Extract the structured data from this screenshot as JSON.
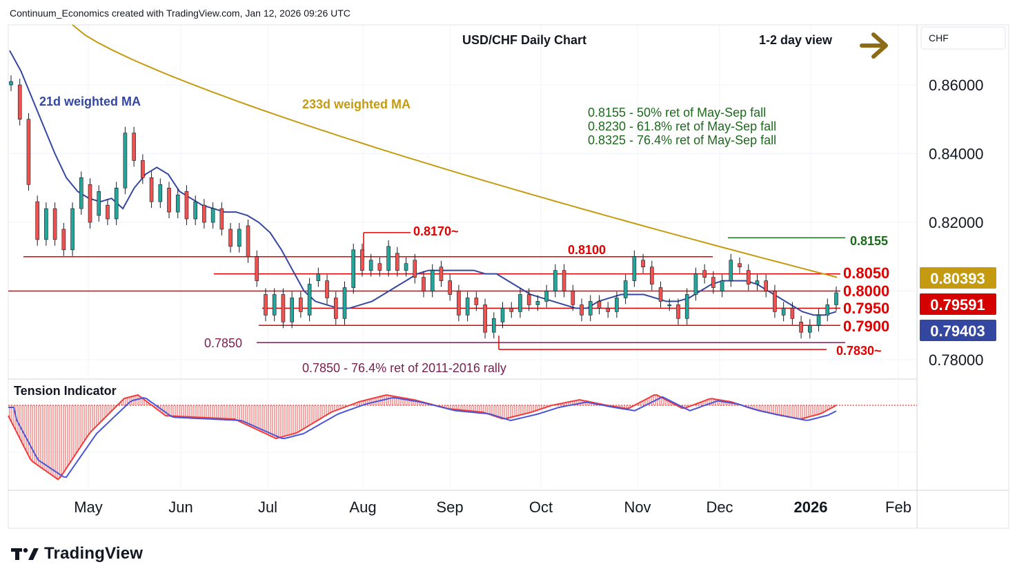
{
  "header": {
    "credit": "Continuum_Economics created with TradingView.com, Jan 12, 2026 09:26 UTC",
    "title": "USD/CHF Daily Chart",
    "view": "1-2 day view",
    "currency": "CHF"
  },
  "watermark": "TradingView",
  "colors": {
    "up": "#26a69a",
    "down": "#ef5350",
    "level": "#e00000",
    "ma21": "#3447a0",
    "ma233": "#c49b10",
    "green_text": "#1b6a1b",
    "maroon_text": "#7a1d4f",
    "arrow": "#8b6b16"
  },
  "annotations": {
    "ma21_label": "21d weighted MA",
    "ma233_label": "233d weighted MA",
    "retracements": [
      "0.8155 - 50% ret of May-Sep fall",
      "0.8230 - 61.8% ret of May-Sep fall",
      "0.8325 - 76.4% ret of May-Sep fall"
    ],
    "level_8170": "0.8170~",
    "level_8100": "0.8100",
    "level_8155": "0.8155",
    "level_8050": "0.8050",
    "level_8000": "0.8000",
    "level_7950": "0.7950",
    "level_7900": "0.7900",
    "level_7850": "0.7850",
    "level_7830": "0.7830~",
    "rally_note": "0.7850 - 76.4% ret of 2011-2016 rally",
    "indicator_title": "Tension Indicator"
  },
  "price_badges": [
    {
      "value": "0.80393",
      "color": "#c49b10",
      "text_color": "#ffffff"
    },
    {
      "value": "0.79591",
      "color": "#d50000",
      "text_color": "#ffffff"
    },
    {
      "value": "0.79403",
      "color": "#3447a0",
      "text_color": "#ffffff"
    }
  ],
  "chart_data": {
    "type": "candlestick",
    "title": "USD/CHF Daily Chart",
    "y_axis": {
      "ticks": [
        "0.86000",
        "0.84000",
        "0.82000",
        "0.78000"
      ],
      "range": [
        0.775,
        0.878
      ]
    },
    "x_axis": {
      "ticks": [
        "May",
        "Jun",
        "Jul",
        "Aug",
        "Sep",
        "Oct",
        "Nov",
        "Dec",
        "2026",
        "Feb"
      ]
    },
    "horizontal_levels": [
      0.817,
      0.8155,
      0.81,
      0.805,
      0.8,
      0.795,
      0.79,
      0.785,
      0.783
    ],
    "close_path": [
      [
        0.86,
        0.861
      ],
      [
        0.86,
        0.85
      ],
      [
        0.85,
        0.831
      ],
      [
        0.826,
        0.815
      ],
      [
        0.815,
        0.824
      ],
      [
        0.824,
        0.815
      ],
      [
        0.818,
        0.812
      ],
      [
        0.812,
        0.824
      ],
      [
        0.824,
        0.833
      ],
      [
        0.831,
        0.82
      ],
      [
        0.822,
        0.829
      ],
      [
        0.825,
        0.821
      ],
      [
        0.821,
        0.83
      ],
      [
        0.83,
        0.846
      ],
      [
        0.846,
        0.838
      ],
      [
        0.838,
        0.833
      ],
      [
        0.833,
        0.826
      ],
      [
        0.826,
        0.831
      ],
      [
        0.83,
        0.823
      ],
      [
        0.823,
        0.828
      ],
      [
        0.829,
        0.821
      ],
      [
        0.821,
        0.826
      ],
      [
        0.825,
        0.82
      ],
      [
        0.82,
        0.824
      ],
      [
        0.824,
        0.818
      ],
      [
        0.818,
        0.813
      ],
      [
        0.813,
        0.818
      ],
      [
        0.819,
        0.81
      ],
      [
        0.81,
        0.803
      ],
      [
        0.799,
        0.793
      ],
      [
        0.793,
        0.799
      ],
      [
        0.799,
        0.791
      ],
      [
        0.791,
        0.798
      ],
      [
        0.798,
        0.794
      ],
      [
        0.793,
        0.802
      ],
      [
        0.803,
        0.805
      ],
      [
        0.803,
        0.798
      ],
      [
        0.798,
        0.792
      ],
      [
        0.792,
        0.801
      ],
      [
        0.801,
        0.812
      ],
      [
        0.812,
        0.806
      ],
      [
        0.806,
        0.809
      ],
      [
        0.808,
        0.806
      ],
      [
        0.806,
        0.813
      ],
      [
        0.811,
        0.806
      ],
      [
        0.806,
        0.808
      ],
      [
        0.809,
        0.804
      ],
      [
        0.804,
        0.8
      ],
      [
        0.8,
        0.806
      ],
      [
        0.807,
        0.803
      ],
      [
        0.803,
        0.799
      ],
      [
        0.8,
        0.793
      ],
      [
        0.793,
        0.798
      ],
      [
        0.798,
        0.796
      ],
      [
        0.796,
        0.788
      ],
      [
        0.788,
        0.792
      ],
      [
        0.791,
        0.795
      ],
      [
        0.795,
        0.794
      ],
      [
        0.794,
        0.799
      ],
      [
        0.799,
        0.796
      ],
      [
        0.796,
        0.797
      ],
      [
        0.797,
        0.8
      ],
      [
        0.8,
        0.806
      ],
      [
        0.806,
        0.8
      ],
      [
        0.8,
        0.796
      ],
      [
        0.796,
        0.793
      ],
      [
        0.793,
        0.797
      ],
      [
        0.797,
        0.795
      ],
      [
        0.795,
        0.794
      ],
      [
        0.794,
        0.798
      ],
      [
        0.798,
        0.803
      ],
      [
        0.803,
        0.81
      ],
      [
        0.809,
        0.807
      ],
      [
        0.807,
        0.802
      ],
      [
        0.801,
        0.797
      ],
      [
        0.796,
        0.796
      ],
      [
        0.796,
        0.792
      ],
      [
        0.792,
        0.799
      ],
      [
        0.799,
        0.805
      ],
      [
        0.806,
        0.804
      ],
      [
        0.804,
        0.801
      ],
      [
        0.8,
        0.803
      ],
      [
        0.803,
        0.809
      ],
      [
        0.808,
        0.807
      ],
      [
        0.806,
        0.802
      ],
      [
        0.802,
        0.803
      ],
      [
        0.803,
        0.8
      ],
      [
        0.8,
        0.794
      ],
      [
        0.793,
        0.795
      ],
      [
        0.795,
        0.792
      ],
      [
        0.791,
        0.788
      ],
      [
        0.788,
        0.79
      ],
      [
        0.79,
        0.793
      ],
      [
        0.793,
        0.796
      ],
      [
        0.796,
        0.7995
      ]
    ],
    "ma21_path": [
      0.87,
      0.864,
      0.856,
      0.848,
      0.84,
      0.833,
      0.829,
      0.827,
      0.826,
      0.827,
      0.824,
      0.83,
      0.834,
      0.836,
      0.834,
      0.829,
      0.827,
      0.825,
      0.824,
      0.823,
      0.823,
      0.822,
      0.82,
      0.817,
      0.812,
      0.806,
      0.8,
      0.797,
      0.796,
      0.795,
      0.795,
      0.796,
      0.797,
      0.799,
      0.801,
      0.803,
      0.805,
      0.806,
      0.806,
      0.806,
      0.806,
      0.806,
      0.805,
      0.805,
      0.803,
      0.801,
      0.799,
      0.798,
      0.797,
      0.796,
      0.795,
      0.795,
      0.797,
      0.798,
      0.799,
      0.799,
      0.799,
      0.798,
      0.797,
      0.797,
      0.798,
      0.8,
      0.802,
      0.803,
      0.803,
      0.803,
      0.802,
      0.8,
      0.798,
      0.796,
      0.794,
      0.793,
      0.793,
      0.794
    ]
  }
}
